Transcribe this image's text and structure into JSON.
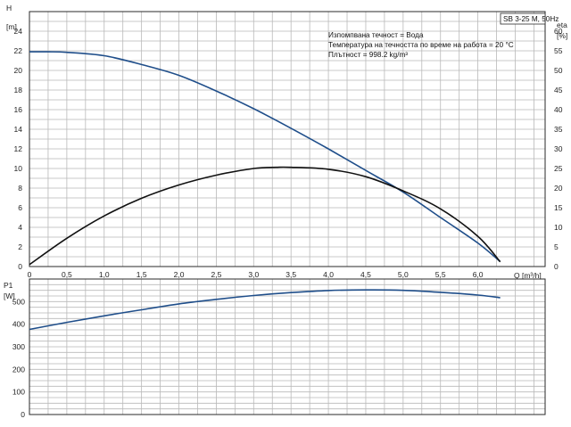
{
  "chart_data": [
    {
      "type": "line",
      "xlabel": "Q [m³/h]",
      "ylabel": "H [m]",
      "y2label": "eta [%]",
      "xlim": [
        0,
        6.9
      ],
      "ylim": [
        0,
        26
      ],
      "y2lim": [
        0,
        65
      ],
      "x_ticks": [
        "0",
        "0,5",
        "1,0",
        "1,5",
        "2,0",
        "2,5",
        "3,0",
        "3,5",
        "4,0",
        "4,5",
        "5,0",
        "5,5",
        "6,0"
      ],
      "y_ticks": [
        "0",
        "2",
        "4",
        "6",
        "8",
        "10",
        "12",
        "14",
        "16",
        "18",
        "20",
        "22",
        "24"
      ],
      "y2_ticks": [
        "0",
        "5",
        "10",
        "15",
        "20",
        "25",
        "30",
        "35",
        "40",
        "45",
        "50",
        "55",
        "60"
      ],
      "grid": true,
      "model_label": "SB 3-25 M, 50Hz",
      "info_lines": [
        "Изпомпвана течност = Вода",
        "Температура на течността по време на работа = 20 °C",
        "Плътност = 998.2 kg/m³"
      ],
      "series": [
        {
          "axis": "left",
          "color": "#1f4e8a",
          "x": [
            0,
            0.25,
            0.5,
            1.0,
            1.5,
            2.0,
            2.5,
            3.0,
            3.5,
            4.0,
            4.5,
            5.0,
            5.5,
            6.0,
            6.3
          ],
          "y": [
            21.9,
            21.9,
            21.85,
            21.5,
            20.6,
            19.5,
            17.9,
            16.1,
            14.1,
            12.0,
            9.8,
            7.6,
            5.0,
            2.4,
            0.5
          ]
        },
        {
          "axis": "right",
          "color": "#111111",
          "x": [
            0,
            0.5,
            1.0,
            1.5,
            2.0,
            2.5,
            3.0,
            3.3,
            3.5,
            4.0,
            4.5,
            5.0,
            5.5,
            6.0,
            6.3
          ],
          "y": [
            0.5,
            7.2,
            12.9,
            17.4,
            20.8,
            23.3,
            25.0,
            25.3,
            25.3,
            24.8,
            22.9,
            19.3,
            14.7,
            7.7,
            1.2
          ]
        }
      ]
    },
    {
      "type": "line",
      "xlabel": "",
      "ylabel": "P1 [W]",
      "xlim": [
        0,
        6.9
      ],
      "ylim": [
        0,
        600
      ],
      "y_ticks": [
        "0",
        "100",
        "200",
        "300",
        "400",
        "500"
      ],
      "grid": true,
      "series": [
        {
          "axis": "left",
          "color": "#1f4e8a",
          "x": [
            0,
            0.5,
            1.0,
            1.5,
            2.0,
            2.5,
            3.0,
            3.5,
            4.0,
            4.5,
            5.0,
            5.5,
            6.0,
            6.3
          ],
          "y": [
            377,
            408,
            437,
            464,
            490,
            510,
            527,
            540,
            549,
            552,
            550,
            541,
            529,
            517
          ]
        }
      ]
    }
  ]
}
